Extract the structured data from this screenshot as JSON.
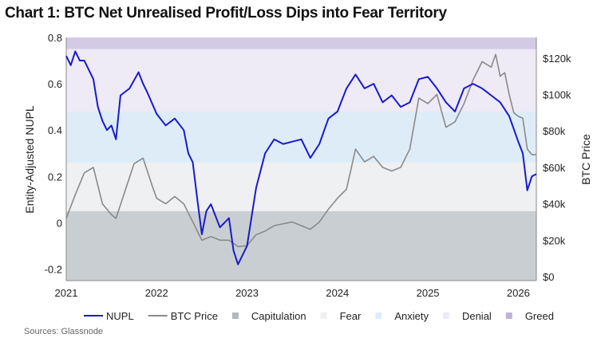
{
  "title": "Chart 1: BTC Net Unrealised Profit/Loss Dips into Fear Territory",
  "source": "Sources: Glassnode",
  "chart_data": {
    "type": "line",
    "title": "Chart 1: BTC Net Unrealised Profit/Loss Dips into Fear Territory",
    "ylabel": "Entity-Adjusted NUPL",
    "y2label": "BTC Price",
    "ylim": [
      -0.25,
      0.8
    ],
    "y2lim": [
      0,
      132000
    ],
    "xlim": [
      2021,
      2026.2
    ],
    "yticks": [
      {
        "v": 0.8,
        "l": "0.8"
      },
      {
        "v": 0.6,
        "l": "0.6"
      },
      {
        "v": 0.4,
        "l": "0.4"
      },
      {
        "v": 0.2,
        "l": "0.2"
      },
      {
        "v": 0,
        "l": "0"
      },
      {
        "v": -0.2,
        "l": "-0.2"
      }
    ],
    "y2ticks": [
      {
        "v": 120000,
        "l": "$120k"
      },
      {
        "v": 100000,
        "l": "$100k"
      },
      {
        "v": 80000,
        "l": "$80k"
      },
      {
        "v": 60000,
        "l": "$60k"
      },
      {
        "v": 40000,
        "l": "$40k"
      },
      {
        "v": 20000,
        "l": "$20k"
      },
      {
        "v": 0,
        "l": "$0"
      }
    ],
    "xticks": [
      {
        "v": 2021,
        "l": "2021"
      },
      {
        "v": 2022,
        "l": "2022"
      },
      {
        "v": 2023,
        "l": "2023"
      },
      {
        "v": 2024,
        "l": "2024"
      },
      {
        "v": 2025,
        "l": "2025"
      },
      {
        "v": 2026,
        "l": "2026"
      }
    ],
    "bands": [
      {
        "name": "Capitulation",
        "from": -0.25,
        "to": 0.05,
        "color": "#c9ced2"
      },
      {
        "name": "Fear",
        "from": 0.05,
        "to": 0.26,
        "color": "#eef0f2"
      },
      {
        "name": "Anxiety",
        "from": 0.26,
        "to": 0.48,
        "color": "#deecf8"
      },
      {
        "name": "Denial",
        "from": 0.48,
        "to": 0.75,
        "color": "#eeeaf6"
      },
      {
        "name": "Greed",
        "from": 0.75,
        "to": 0.8,
        "color": "#d3cbe6"
      }
    ],
    "series": [
      {
        "name": "NUPL",
        "color": "#1a1acc",
        "axis": "left",
        "x": [
          2021.0,
          2021.05,
          2021.1,
          2021.15,
          2021.2,
          2021.3,
          2021.35,
          2021.4,
          2021.45,
          2021.5,
          2021.55,
          2021.6,
          2021.7,
          2021.8,
          2021.85,
          2021.9,
          2022.0,
          2022.1,
          2022.2,
          2022.3,
          2022.35,
          2022.4,
          2022.45,
          2022.5,
          2022.55,
          2022.6,
          2022.7,
          2022.8,
          2022.85,
          2022.9,
          2023.0,
          2023.1,
          2023.2,
          2023.3,
          2023.4,
          2023.5,
          2023.6,
          2023.7,
          2023.8,
          2023.9,
          2024.0,
          2024.1,
          2024.2,
          2024.3,
          2024.4,
          2024.5,
          2024.6,
          2024.7,
          2024.8,
          2024.9,
          2025.0,
          2025.1,
          2025.2,
          2025.3,
          2025.4,
          2025.5,
          2025.6,
          2025.7,
          2025.8,
          2025.9,
          2026.0,
          2026.05,
          2026.1,
          2026.15,
          2026.2
        ],
        "y": [
          0.72,
          0.68,
          0.74,
          0.7,
          0.7,
          0.62,
          0.5,
          0.44,
          0.4,
          0.42,
          0.36,
          0.55,
          0.58,
          0.65,
          0.6,
          0.56,
          0.47,
          0.42,
          0.45,
          0.4,
          0.3,
          0.26,
          0.1,
          -0.05,
          0.05,
          0.08,
          -0.02,
          0.02,
          -0.12,
          -0.18,
          -0.1,
          0.15,
          0.3,
          0.36,
          0.34,
          0.35,
          0.36,
          0.28,
          0.34,
          0.45,
          0.48,
          0.58,
          0.64,
          0.58,
          0.6,
          0.52,
          0.55,
          0.5,
          0.52,
          0.62,
          0.63,
          0.58,
          0.52,
          0.48,
          0.58,
          0.6,
          0.58,
          0.55,
          0.52,
          0.46,
          0.35,
          0.3,
          0.14,
          0.2,
          0.21
        ]
      },
      {
        "name": "BTC Price",
        "color": "#8a8a8a",
        "axis": "right",
        "x": [
          2021.0,
          2021.1,
          2021.2,
          2021.3,
          2021.4,
          2021.5,
          2021.55,
          2021.65,
          2021.75,
          2021.85,
          2021.95,
          2022.0,
          2022.1,
          2022.2,
          2022.3,
          2022.4,
          2022.5,
          2022.6,
          2022.7,
          2022.8,
          2022.9,
          2023.0,
          2023.1,
          2023.2,
          2023.3,
          2023.5,
          2023.7,
          2023.8,
          2023.9,
          2024.0,
          2024.1,
          2024.2,
          2024.3,
          2024.4,
          2024.5,
          2024.6,
          2024.7,
          2024.8,
          2024.9,
          2025.0,
          2025.1,
          2025.2,
          2025.3,
          2025.4,
          2025.5,
          2025.6,
          2025.7,
          2025.75,
          2025.8,
          2025.85,
          2025.9,
          2025.95,
          2026.0,
          2026.05,
          2026.1,
          2026.15,
          2026.2
        ],
        "y": [
          32000,
          45000,
          57000,
          60000,
          40000,
          34000,
          32000,
          47000,
          62000,
          65000,
          50000,
          43000,
          40000,
          44000,
          40000,
          30000,
          20000,
          22000,
          20000,
          20000,
          16500,
          17000,
          23000,
          25000,
          28000,
          30000,
          26000,
          30000,
          37000,
          43000,
          48000,
          70000,
          63000,
          66000,
          60000,
          58000,
          60000,
          70000,
          98000,
          95000,
          100000,
          82000,
          85000,
          95000,
          108000,
          118000,
          115000,
          122000,
          110000,
          112000,
          100000,
          90000,
          88000,
          87000,
          70000,
          67000,
          67000
        ]
      }
    ],
    "legend": [
      "NUPL",
      "BTC Price",
      "Capitulation",
      "Fear",
      "Anxiety",
      "Denial",
      "Greed"
    ],
    "legend_position": "bottom",
    "grid": false
  }
}
